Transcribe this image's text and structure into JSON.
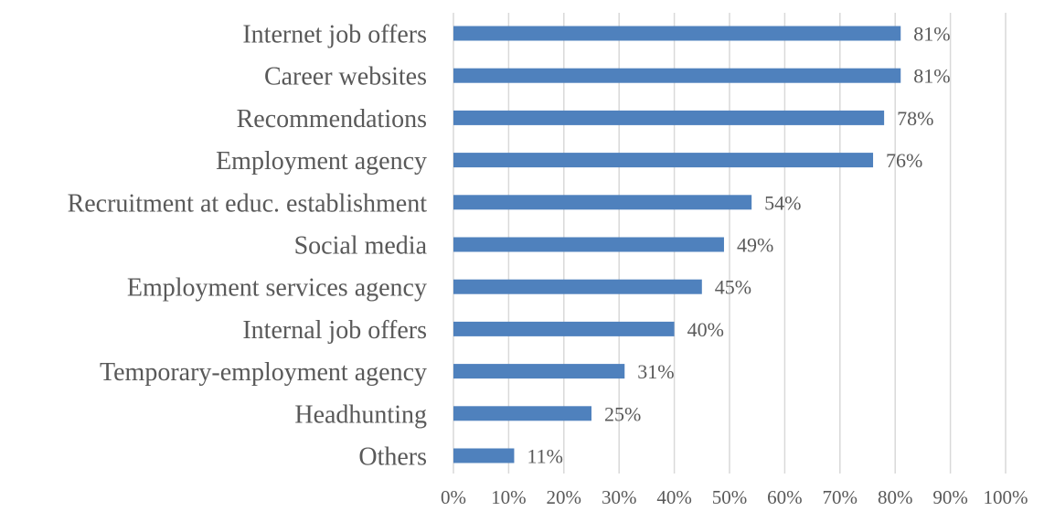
{
  "chart_data": {
    "type": "bar",
    "orientation": "horizontal",
    "categories": [
      "Internet job offers",
      "Career websites",
      "Recommendations",
      "Employment agency",
      "Recruitment at educ. establishment",
      "Social media",
      "Employment services agency",
      "Internal job offers",
      "Temporary-employment agency",
      "Headhunting",
      "Others"
    ],
    "values": [
      81,
      81,
      78,
      76,
      54,
      49,
      45,
      40,
      31,
      25,
      11
    ],
    "data_labels": [
      "81%",
      "81%",
      "78%",
      "76%",
      "54%",
      "49%",
      "45%",
      "40%",
      "31%",
      "25%",
      "11%"
    ],
    "x_ticks": [
      "0%",
      "10%",
      "20%",
      "30%",
      "40%",
      "50%",
      "60%",
      "70%",
      "80%",
      "90%",
      "100%"
    ],
    "xlim": [
      0,
      100
    ],
    "grid": "vertical",
    "legend": "none",
    "colors": {
      "bar": "#4f81bd",
      "grid": "#d9d9d9",
      "text": "#595959"
    }
  }
}
